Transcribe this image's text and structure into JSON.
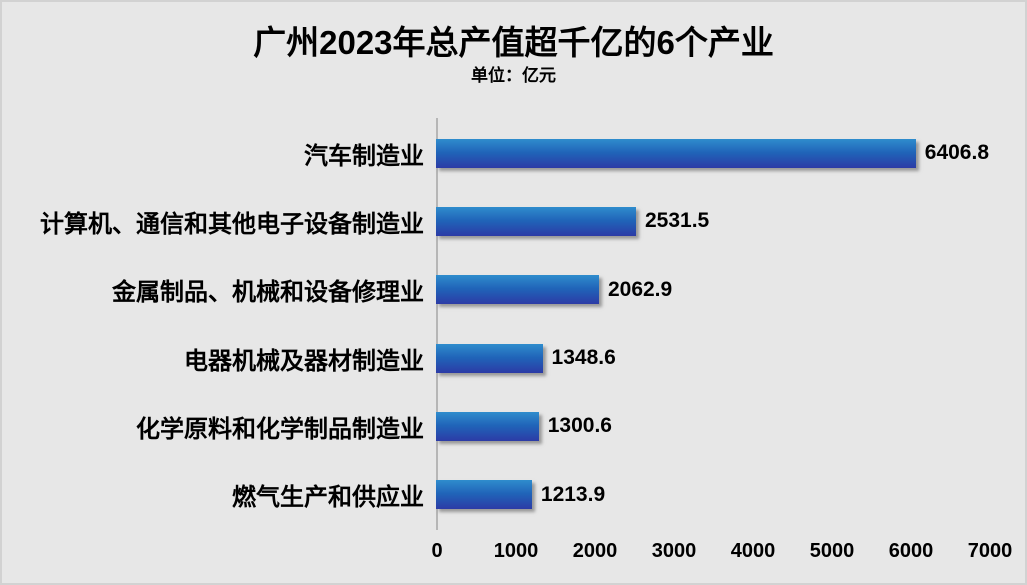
{
  "chart_data": {
    "type": "bar",
    "orientation": "horizontal",
    "title": "广州2023年总产值超千亿的6个产业",
    "unit_label": "单位：亿元",
    "categories": [
      "汽车制造业",
      "计算机、通信和其他电子设备制造业",
      "金属制品、机械和设备修理业",
      "电器机械及器材制造业",
      "化学原料和化学制品制造业",
      "燃气生产和供应业"
    ],
    "values": [
      6406.8,
      2531.5,
      2062.9,
      1348.6,
      1300.6,
      1213.9
    ],
    "x_ticks": [
      0,
      1000,
      2000,
      3000,
      4000,
      5000,
      6000,
      7000
    ],
    "xlim": [
      0,
      7000
    ],
    "xlabel": "",
    "ylabel": "",
    "grid": false,
    "legend": "none",
    "data_labels": true,
    "colors": {
      "bar_gradient_top": "#2f8ccd",
      "bar_gradient_mid": "#2063b8",
      "bar_gradient_bottom": "#2c3ba6",
      "background": "#e7e7e7",
      "axis_line": "#b6b6b6",
      "text": "#000000"
    }
  }
}
